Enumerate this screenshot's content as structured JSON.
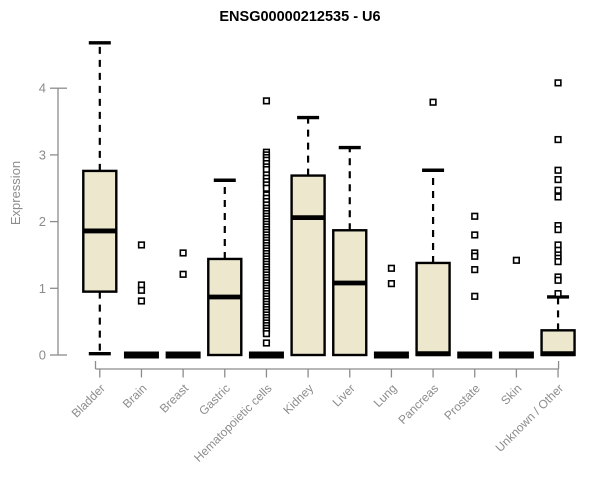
{
  "page": {
    "background": "#ffffff"
  },
  "chart_data": {
    "type": "boxplot",
    "title": "ENSG00000212535 - U6",
    "ylabel": "Expression",
    "xlabel": "",
    "ylim": [
      0,
      4.8
    ],
    "yticks": [
      0,
      1,
      2,
      3,
      4
    ],
    "grid": false,
    "legend": "none",
    "axis_color": "#8c8c8c",
    "box_fill": "#ece7cd",
    "box_stroke": "#000000",
    "categories": [
      "Bladder",
      "Brain",
      "Breast",
      "Gastric",
      "Hematopoietic cells",
      "Kidney",
      "Liver",
      "Lung",
      "Pancreas",
      "Prostate",
      "Skin",
      "Unknown / Other"
    ],
    "series": [
      {
        "category": "Bladder",
        "q1": 0.95,
        "median": 1.86,
        "q3": 2.76,
        "whisker_low": 0.02,
        "whisker_high": 4.68,
        "outliers": []
      },
      {
        "category": "Brain",
        "q1": 0,
        "median": 0,
        "q3": 0,
        "whisker_low": 0,
        "whisker_high": 0,
        "outliers": [
          1.65,
          1.05,
          0.97,
          0.81
        ]
      },
      {
        "category": "Breast",
        "q1": 0,
        "median": 0,
        "q3": 0,
        "whisker_low": 0,
        "whisker_high": 0,
        "outliers": [
          1.53,
          1.21
        ]
      },
      {
        "category": "Gastric",
        "q1": 0,
        "median": 0.87,
        "q3": 1.44,
        "whisker_low": 0,
        "whisker_high": 2.62,
        "outliers": []
      },
      {
        "category": "Hematopoietic cells",
        "q1": 0,
        "median": 0,
        "q3": 0,
        "whisker_low": 0,
        "whisker_high": 0,
        "outliers": [
          3.81,
          3.04,
          3.0,
          2.96,
          2.92,
          2.87,
          2.82,
          2.78,
          2.7,
          2.65,
          2.6,
          2.55,
          2.5,
          2.4,
          2.35,
          2.3,
          2.25,
          2.2,
          2.16,
          2.12,
          2.08,
          2.04,
          2.0,
          1.96,
          1.92,
          1.88,
          1.84,
          1.8,
          1.76,
          1.72,
          1.68,
          1.64,
          1.6,
          1.56,
          1.52,
          1.48,
          1.44,
          1.4,
          1.36,
          1.32,
          1.28,
          1.24,
          1.2,
          1.16,
          1.12,
          1.08,
          1.04,
          1.0,
          0.96,
          0.92,
          0.88,
          0.84,
          0.8,
          0.76,
          0.72,
          0.68,
          0.64,
          0.6,
          0.56,
          0.52,
          0.48,
          0.44,
          0.4,
          0.36,
          0.32,
          0.18
        ]
      },
      {
        "category": "Kidney",
        "q1": 0,
        "median": 2.06,
        "q3": 2.69,
        "whisker_low": 0,
        "whisker_high": 3.56,
        "outliers": []
      },
      {
        "category": "Liver",
        "q1": 0,
        "median": 1.08,
        "q3": 1.87,
        "whisker_low": 0,
        "whisker_high": 3.11,
        "outliers": []
      },
      {
        "category": "Lung",
        "q1": 0,
        "median": 0,
        "q3": 0,
        "whisker_low": 0,
        "whisker_high": 0,
        "outliers": [
          1.3,
          1.07
        ]
      },
      {
        "category": "Pancreas",
        "q1": 0,
        "median": 0.02,
        "q3": 1.38,
        "whisker_low": 0,
        "whisker_high": 2.77,
        "outliers": [
          3.79
        ]
      },
      {
        "category": "Prostate",
        "q1": 0,
        "median": 0,
        "q3": 0,
        "whisker_low": 0,
        "whisker_high": 0,
        "outliers": [
          2.08,
          1.8,
          1.53,
          1.48,
          1.28,
          0.88
        ]
      },
      {
        "category": "Skin",
        "q1": 0,
        "median": 0,
        "q3": 0,
        "whisker_low": 0,
        "whisker_high": 0,
        "outliers": [
          1.42
        ]
      },
      {
        "category": "Unknown / Other",
        "q1": 0,
        "median": 0.02,
        "q3": 0.37,
        "whisker_low": 0,
        "whisker_high": 0.87,
        "outliers": [
          4.08,
          3.23,
          2.77,
          2.63,
          2.47,
          2.37,
          1.94,
          1.88,
          1.65,
          1.57,
          1.5,
          1.45,
          1.4,
          1.17,
          1.12,
          0.92
        ]
      }
    ]
  }
}
